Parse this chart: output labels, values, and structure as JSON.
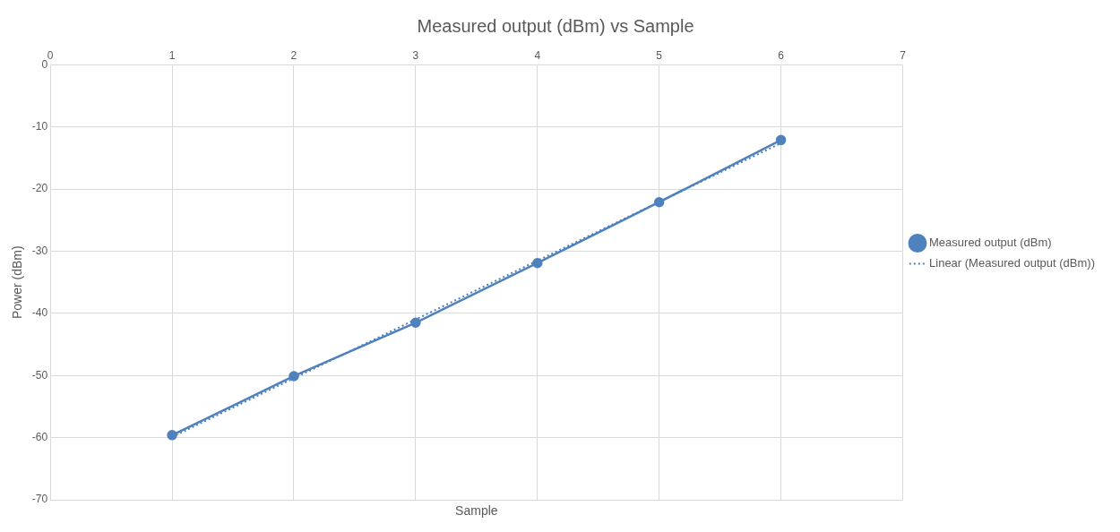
{
  "chart_data": {
    "type": "line",
    "title": "Measured output (dBm) vs Sample",
    "xlabel": "Sample",
    "ylabel": "Power (dBm)",
    "xlim": [
      0,
      7
    ],
    "xticks": [
      0,
      1,
      2,
      3,
      4,
      5,
      6,
      7
    ],
    "ylim": [
      -70,
      0
    ],
    "yticks": [
      -70,
      -60,
      -50,
      -40,
      -30,
      -20,
      -10,
      0
    ],
    "grid": true,
    "legend": "right",
    "series": [
      {
        "name": "Measured output (dBm)",
        "color": "#4f81bd",
        "x": [
          1,
          2,
          3,
          4,
          5,
          6
        ],
        "values": [
          -59.6,
          -50.1,
          -41.5,
          -31.9,
          -22.1,
          -12.1
        ],
        "marker": "circle",
        "line_style": "solid"
      },
      {
        "name": "Linear (Measured output (dBm))",
        "color": "#4f81bd",
        "x": [
          1,
          6
        ],
        "values": [
          -59.9,
          -12.6
        ],
        "marker": "none",
        "line_style": "dotted"
      }
    ]
  }
}
